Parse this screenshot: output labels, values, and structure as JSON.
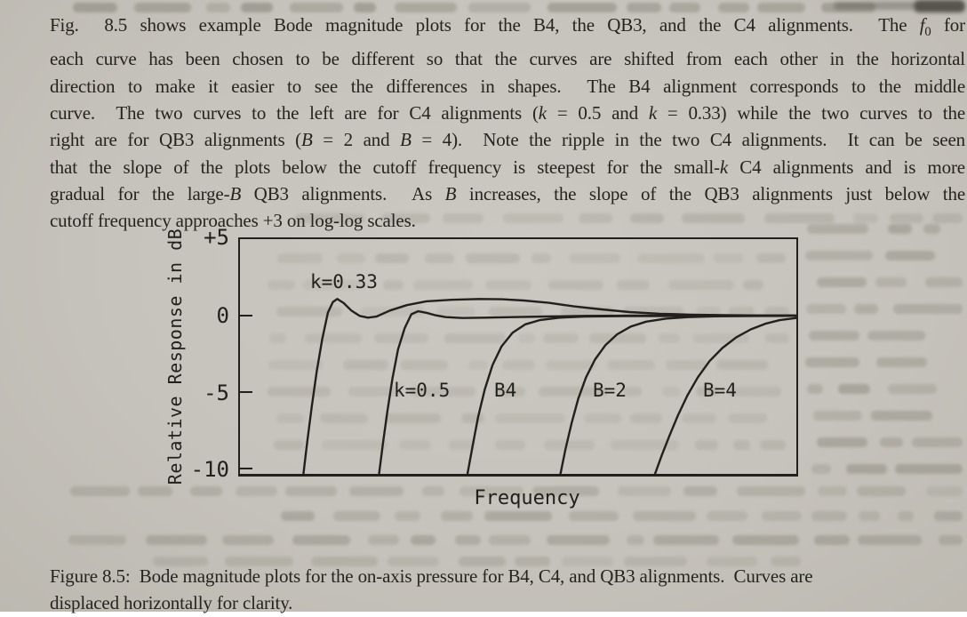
{
  "page": {
    "background": "#c6c3bc",
    "text_color": "#26241f"
  },
  "paragraph": {
    "lines": [
      "Fig.&nbsp; 8.5 shows example Bode magnitude plots for the B4, the QB3, and the C4 alignments.&nbsp; The <i>f</i><sub>0</sub> for",
      "each curve has been chosen to be different so that the curves are shifted from each other in the horizontal",
      "direction to make it easier to see the differences in shapes.&nbsp; The B4 alignment corresponds to the middle",
      "curve.&nbsp; The two curves to the left are for C4 alignments (<i>k</i> = 0.5 and <i>k</i> = 0.33) while the two curves to the",
      "right are for QB3 alignments (<i>B</i> = 2 and <i>B</i> = 4).&nbsp; Note the ripple in the two C4 alignments.&nbsp; It can be seen",
      "that the slope of the plots below the cutoff frequency is steepest for the small-<i>k</i> C4 alignments and is more",
      "gradual for the large-<i>B</i> QB3 alignments.&nbsp; As <i>B</i> increases, the slope of the QB3 alignments just below the",
      "cutoff frequency approaches +3 on log-log scales."
    ]
  },
  "figure_caption": {
    "lines": [
      "Figure 8.5:&nbsp; Bode magnitude plots for the on-axis pressure for B4, C4, and QB3 alignments.&nbsp; Curves are",
      "displaced horizontally for clarity."
    ]
  },
  "chart_data": {
    "type": "line",
    "title": "",
    "xlabel": "Frequency",
    "ylabel": "Relative Response in dB",
    "line_color": "#22201c",
    "grid": false,
    "x_axis": {
      "scale": "log",
      "ticks": [],
      "note": "no numeric x scale shown; curves displaced horizontally for clarity; x given as fraction of plot width"
    },
    "y_axis": {
      "ticks": [
        "+5",
        "0",
        "-5",
        "-10"
      ],
      "tick_values": [
        5,
        0,
        -5,
        -10
      ],
      "range_db": [
        -10.3,
        5
      ]
    },
    "series": [
      {
        "name": "C4 alignment k=0.33",
        "label": "k=0.33",
        "points": [
          [
            0.114,
            -10.3
          ],
          [
            0.121,
            -8.2
          ],
          [
            0.129,
            -5.9
          ],
          [
            0.138,
            -3.6
          ],
          [
            0.148,
            -1.5
          ],
          [
            0.158,
            0.2
          ],
          [
            0.167,
            0.9
          ],
          [
            0.175,
            1.1
          ],
          [
            0.186,
            0.85
          ],
          [
            0.2,
            0.35
          ],
          [
            0.215,
            0.0
          ],
          [
            0.23,
            -0.12
          ],
          [
            0.245,
            -0.05
          ],
          [
            0.27,
            0.35
          ],
          [
            0.3,
            0.7
          ],
          [
            0.335,
            0.95
          ],
          [
            0.38,
            1.05
          ],
          [
            0.43,
            1.1
          ],
          [
            0.47,
            1.08
          ],
          [
            0.51,
            1.0
          ],
          [
            0.555,
            0.85
          ],
          [
            0.6,
            0.62
          ],
          [
            0.65,
            0.42
          ],
          [
            0.7,
            0.25
          ],
          [
            0.755,
            0.14
          ],
          [
            0.81,
            0.08
          ],
          [
            0.87,
            0.05
          ],
          [
            0.93,
            0.03
          ],
          [
            1.0,
            0.02
          ]
        ]
      },
      {
        "name": "C4 alignment k=0.5",
        "label": "k=0.5",
        "points": [
          [
            0.25,
            -10.3
          ],
          [
            0.257,
            -8.3
          ],
          [
            0.265,
            -6.2
          ],
          [
            0.274,
            -4.1
          ],
          [
            0.284,
            -2.2
          ],
          [
            0.296,
            -0.8
          ],
          [
            0.308,
            0.1
          ],
          [
            0.32,
            0.3
          ],
          [
            0.335,
            0.2
          ],
          [
            0.35,
            0.05
          ],
          [
            0.37,
            -0.08
          ],
          [
            0.4,
            -0.14
          ],
          [
            0.44,
            -0.12
          ],
          [
            0.49,
            -0.08
          ],
          [
            0.55,
            -0.04
          ],
          [
            0.62,
            0.0
          ],
          [
            0.72,
            0.02
          ],
          [
            0.85,
            0.02
          ],
          [
            1.0,
            0.02
          ]
        ]
      },
      {
        "name": "B4 alignment",
        "label": "B4",
        "points": [
          [
            0.409,
            -10.3
          ],
          [
            0.418,
            -8.5
          ],
          [
            0.428,
            -6.6
          ],
          [
            0.44,
            -4.8
          ],
          [
            0.454,
            -3.2
          ],
          [
            0.47,
            -2.0
          ],
          [
            0.49,
            -1.1
          ],
          [
            0.513,
            -0.55
          ],
          [
            0.54,
            -0.27
          ],
          [
            0.575,
            -0.12
          ],
          [
            0.62,
            -0.05
          ],
          [
            0.69,
            -0.02
          ],
          [
            0.78,
            -0.01
          ],
          [
            1.0,
            0.0
          ]
        ]
      },
      {
        "name": "QB3 alignment B=2",
        "label": "B=2",
        "points": [
          [
            0.576,
            -10.3
          ],
          [
            0.585,
            -8.7
          ],
          [
            0.596,
            -7.0
          ],
          [
            0.608,
            -5.4
          ],
          [
            0.622,
            -4.0
          ],
          [
            0.638,
            -2.85
          ],
          [
            0.657,
            -1.9
          ],
          [
            0.678,
            -1.2
          ],
          [
            0.702,
            -0.7
          ],
          [
            0.73,
            -0.38
          ],
          [
            0.765,
            -0.18
          ],
          [
            0.805,
            -0.08
          ],
          [
            0.855,
            -0.03
          ],
          [
            0.92,
            -0.01
          ],
          [
            1.0,
            0.0
          ]
        ]
      },
      {
        "name": "QB3 alignment B=4",
        "label": "B=4",
        "points": [
          [
            0.746,
            -10.3
          ],
          [
            0.758,
            -9.1
          ],
          [
            0.772,
            -7.8
          ],
          [
            0.787,
            -6.5
          ],
          [
            0.804,
            -5.2
          ],
          [
            0.823,
            -4.0
          ],
          [
            0.844,
            -2.95
          ],
          [
            0.867,
            -2.1
          ],
          [
            0.892,
            -1.4
          ],
          [
            0.918,
            -0.88
          ],
          [
            0.944,
            -0.52
          ],
          [
            0.97,
            -0.28
          ],
          [
            1.0,
            -0.14
          ]
        ]
      }
    ]
  }
}
